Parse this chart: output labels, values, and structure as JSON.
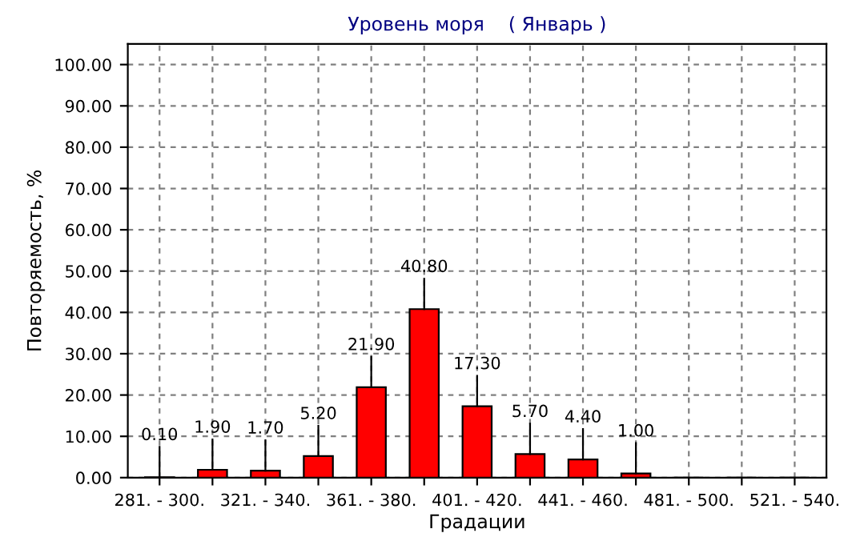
{
  "chart_data": {
    "type": "bar",
    "title": "Уровень моря    ( Январь )",
    "xlabel": "Градации",
    "ylabel": "Повторяемость, %",
    "categories": [
      "281. - 300.",
      null,
      "321. - 340.",
      null,
      "361. - 380.",
      null,
      "401. - 420.",
      null,
      "441. - 460.",
      null,
      "481. - 500.",
      null,
      "521. - 540."
    ],
    "values": [
      0.1,
      1.9,
      1.7,
      5.2,
      21.9,
      40.8,
      17.3,
      5.7,
      4.4,
      1.0,
      0,
      0,
      0
    ],
    "value_labels": [
      "0.10",
      "1.90",
      "1.70",
      "5.20",
      "21.90",
      "40.80",
      "17.30",
      "5.70",
      "4.40",
      "1.00",
      null,
      null,
      null
    ],
    "color": "#ff0000",
    "ylim": [
      0,
      105
    ],
    "yticks": [
      {
        "value": 0,
        "label": "0.00"
      },
      {
        "value": 10,
        "label": "10.00"
      },
      {
        "value": 20,
        "label": "20.00"
      },
      {
        "value": 30,
        "label": "30.00"
      },
      {
        "value": 40,
        "label": "40.00"
      },
      {
        "value": 50,
        "label": "50.00"
      },
      {
        "value": 60,
        "label": "60.00"
      },
      {
        "value": 70,
        "label": "70.00"
      },
      {
        "value": 80,
        "label": "80.00"
      },
      {
        "value": 90,
        "label": "90.00"
      },
      {
        "value": 100,
        "label": "100.00"
      }
    ],
    "grid": true
  }
}
